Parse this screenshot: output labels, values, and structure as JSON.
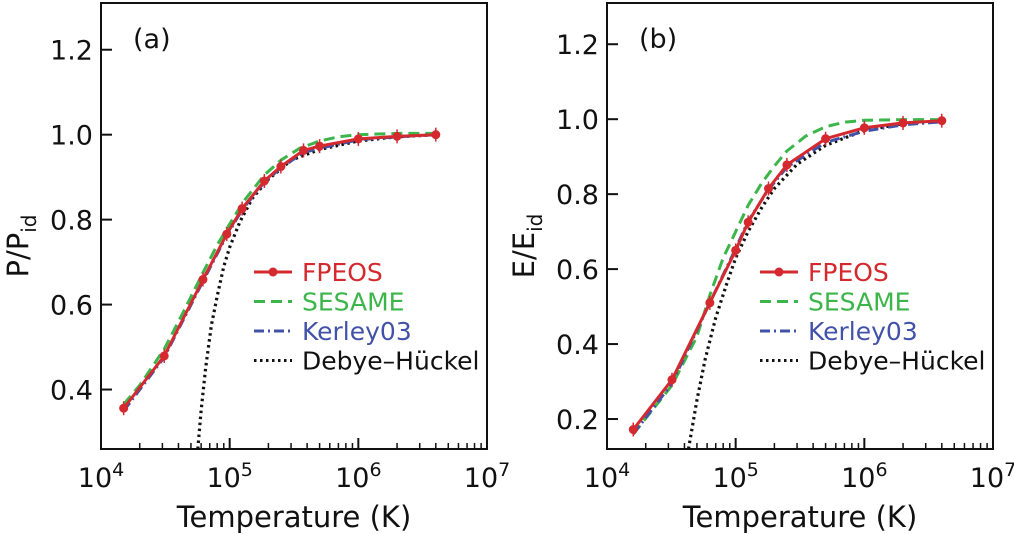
{
  "chart_data": [
    {
      "type": "line",
      "panel_label": "(a)",
      "xlabel": "Temperature (K)",
      "ylabel_main": "P/P",
      "ylabel_sub": "id",
      "xscale": "log",
      "xlim": [
        10000,
        10000000
      ],
      "ylim": [
        0.26,
        1.31
      ],
      "x_ticks": [
        {
          "value": 10000,
          "base": "10",
          "exp": "4"
        },
        {
          "value": 100000,
          "base": "10",
          "exp": "5"
        },
        {
          "value": 1000000,
          "base": "10",
          "exp": "6"
        },
        {
          "value": 10000000,
          "base": "10",
          "exp": "7"
        }
      ],
      "y_ticks": [
        {
          "value": 0.4,
          "label": "0.4"
        },
        {
          "value": 0.6,
          "label": "0.6"
        },
        {
          "value": 0.8,
          "label": "0.8"
        },
        {
          "value": 1.0,
          "label": "1.0"
        },
        {
          "value": 1.2,
          "label": "1.2"
        }
      ],
      "legend_position": "center-right",
      "series": [
        {
          "name": "FPEOS",
          "color": "#d42a2f",
          "style": "solid-markers",
          "x": [
            15000,
            31000,
            62000,
            95000,
            125000,
            186000,
            250000,
            375000,
            500000,
            1000000,
            2000000,
            4000000
          ],
          "y": [
            0.356,
            0.479,
            0.659,
            0.766,
            0.826,
            0.891,
            0.925,
            0.963,
            0.973,
            0.99,
            0.996,
            1.0
          ]
        },
        {
          "name": "SESAME",
          "color": "#3cb54a",
          "style": "dashed",
          "x": [
            15000,
            20000,
            31000,
            45000,
            62000,
            80000,
            100000,
            130000,
            186000,
            250000,
            350000,
            500000,
            700000,
            1000000,
            2000000,
            4000000
          ],
          "y": [
            0.365,
            0.41,
            0.495,
            0.59,
            0.675,
            0.74,
            0.79,
            0.845,
            0.905,
            0.94,
            0.968,
            0.985,
            0.995,
            1.0,
            1.003,
            1.003
          ]
        },
        {
          "name": "Kerley03",
          "color": "#4252a8",
          "style": "dashdot",
          "x": [
            15000,
            31000,
            62000,
            95000,
            125000,
            186000,
            250000,
            375000,
            500000,
            1000000,
            2000000,
            4000000
          ],
          "y": [
            0.35,
            0.476,
            0.655,
            0.763,
            0.823,
            0.888,
            0.922,
            0.958,
            0.968,
            0.988,
            0.995,
            1.0
          ]
        },
        {
          "name": "Debye–Hückel",
          "color": "#111111",
          "style": "dotted",
          "x": [
            56500,
            60000,
            65000,
            72000,
            80000,
            90000,
            100000,
            120000,
            150000,
            200000,
            300000,
            500000,
            1000000,
            2000000,
            4000000
          ],
          "y": [
            0.26,
            0.35,
            0.45,
            0.55,
            0.62,
            0.69,
            0.735,
            0.795,
            0.85,
            0.895,
            0.94,
            0.965,
            0.985,
            0.995,
            1.0
          ]
        }
      ]
    },
    {
      "type": "line",
      "panel_label": "(b)",
      "xlabel": "Temperature (K)",
      "ylabel_main": "E/E",
      "ylabel_sub": "id",
      "xscale": "log",
      "xlim": [
        10000,
        10000000
      ],
      "ylim": [
        0.12,
        1.31
      ],
      "x_ticks": [
        {
          "value": 10000,
          "base": "10",
          "exp": "4"
        },
        {
          "value": 100000,
          "base": "10",
          "exp": "5"
        },
        {
          "value": 1000000,
          "base": "10",
          "exp": "6"
        },
        {
          "value": 10000000,
          "base": "10",
          "exp": "7"
        }
      ],
      "y_ticks": [
        {
          "value": 0.2,
          "label": "0.2"
        },
        {
          "value": 0.4,
          "label": "0.4"
        },
        {
          "value": 0.6,
          "label": "0.6"
        },
        {
          "value": 0.8,
          "label": "0.8"
        },
        {
          "value": 1.0,
          "label": "1.0"
        },
        {
          "value": 1.2,
          "label": "1.2"
        }
      ],
      "legend_position": "center-right",
      "series": [
        {
          "name": "FPEOS",
          "color": "#d42a2f",
          "style": "solid-markers",
          "x": [
            16000,
            32000,
            63000,
            100000,
            125000,
            180000,
            250000,
            500000,
            1000000,
            2000000,
            4000000
          ],
          "y": [
            0.172,
            0.305,
            0.51,
            0.65,
            0.725,
            0.815,
            0.878,
            0.948,
            0.977,
            0.99,
            0.996
          ]
        },
        {
          "name": "SESAME",
          "color": "#3cb54a",
          "style": "dashed",
          "x": [
            16000,
            32000,
            50000,
            63000,
            80000,
            100000,
            125000,
            160000,
            200000,
            250000,
            350000,
            500000,
            700000,
            1000000,
            2000000,
            4000000
          ],
          "y": [
            0.16,
            0.29,
            0.42,
            0.53,
            0.63,
            0.7,
            0.77,
            0.83,
            0.875,
            0.915,
            0.955,
            0.98,
            0.992,
            0.997,
            0.999,
            0.999
          ]
        },
        {
          "name": "Kerley03",
          "color": "#4252a8",
          "style": "dashdot",
          "x": [
            16000,
            32000,
            63000,
            100000,
            125000,
            180000,
            250000,
            500000,
            1000000,
            2000000,
            4000000
          ],
          "y": [
            0.16,
            0.295,
            0.51,
            0.655,
            0.728,
            0.812,
            0.872,
            0.938,
            0.968,
            0.985,
            0.993
          ]
        },
        {
          "name": "Debye–Hückel",
          "color": "#111111",
          "style": "dotted",
          "x": [
            43000,
            50000,
            58000,
            70000,
            85000,
            100000,
            125000,
            160000,
            200000,
            300000,
            500000,
            1000000,
            2000000,
            4000000
          ],
          "y": [
            0.12,
            0.25,
            0.36,
            0.47,
            0.56,
            0.63,
            0.7,
            0.765,
            0.815,
            0.88,
            0.93,
            0.97,
            0.988,
            0.996
          ]
        }
      ]
    }
  ]
}
